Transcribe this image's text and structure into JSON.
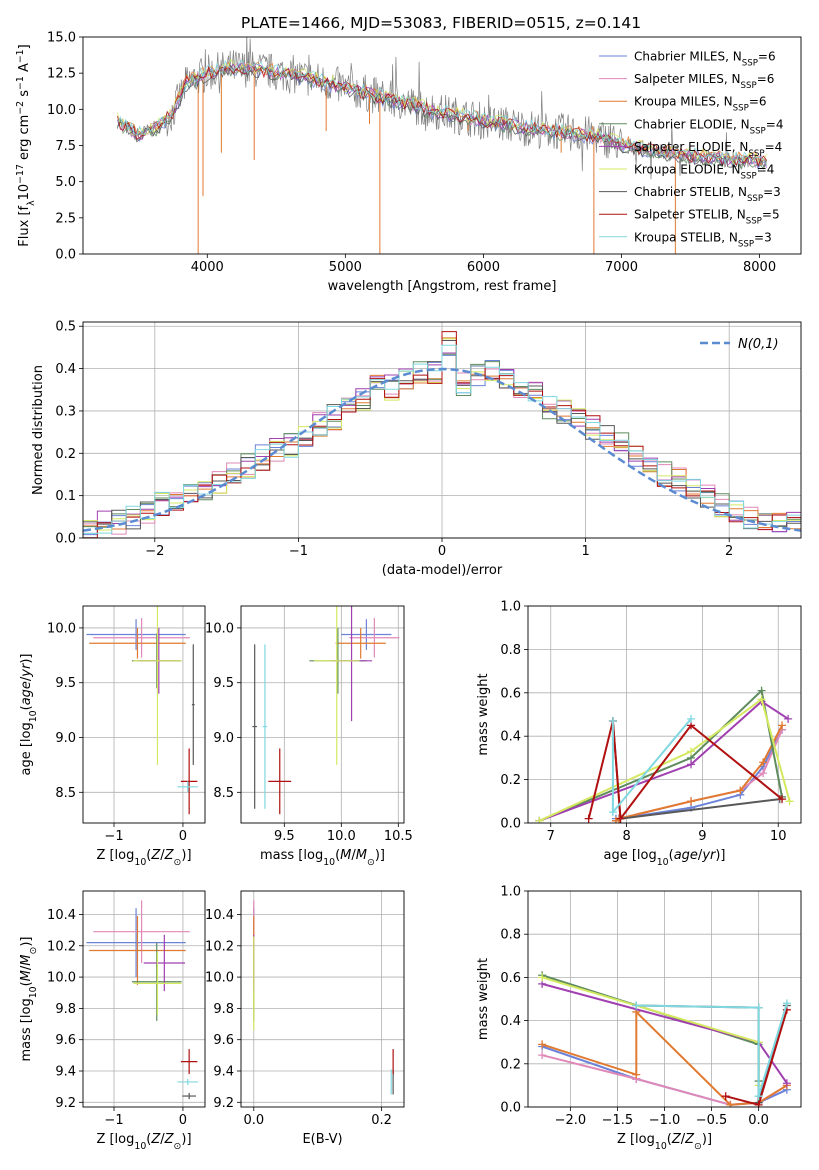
{
  "figure_title": "PLATE=1466, MJD=53083, FIBERID=0515, z=0.141",
  "colors": {
    "Chabrier MILES": "#6b82d8",
    "Salpeter MILES": "#e088b8",
    "Kroupa MILES": "#e07a30",
    "Chabrier ELODIE": "#5e8c5e",
    "Salpeter ELODIE": "#a040b0",
    "Kroupa ELODIE": "#d4e860",
    "Chabrier STELIB": "#585858",
    "Salpeter STELIB": "#b01010",
    "Kroupa STELIB": "#80d8e0",
    "data": "#808080",
    "normal": "#5b8bd0"
  },
  "chart_data": [
    {
      "id": "spectrum",
      "type": "line",
      "title": "PLATE=1466, MJD=53083, FIBERID=0515, z=0.141",
      "xlabel": "wavelength [Angstrom, rest frame]",
      "ylabel": "Flux [f_λ 10^-17 erg cm^-2 s^-1 A^-1]",
      "xlim": [
        3100,
        8300
      ],
      "ylim": [
        0,
        15
      ],
      "xticks": [
        4000,
        5000,
        6000,
        7000,
        8000
      ],
      "yticks": [
        0.0,
        2.5,
        5.0,
        7.5,
        10.0,
        12.5,
        15.0
      ],
      "legend_position": "top-right",
      "legend": [
        "Chabrier MILES, N_SSP=6",
        "Salpeter MILES, N_SSP=6",
        "Kroupa MILES, N_SSP=6",
        "Chabrier ELODIE, N_SSP=4",
        "Salpeter ELODIE, N_SSP=4",
        "Kroupa ELODIE, N_SSP=4",
        "Chabrier STELIB, N_SSP=3",
        "Salpeter STELIB, N_SSP=5",
        "Kroupa STELIB, N_SSP=3"
      ],
      "continuum": {
        "x": [
          3350,
          3500,
          3650,
          3750,
          3850,
          3950,
          4050,
          4200,
          4400,
          4600,
          4800,
          5000,
          5200,
          5400,
          5600,
          5800,
          6000,
          6200,
          6400,
          6600,
          6800,
          7000,
          7200,
          7400,
          7600,
          7800,
          8050
        ],
        "y": [
          9.2,
          8.2,
          8.8,
          9.8,
          11.8,
          12.3,
          12.6,
          12.9,
          12.7,
          12.4,
          12.0,
          11.5,
          11.0,
          10.5,
          10.0,
          9.6,
          9.2,
          8.9,
          8.6,
          8.4,
          8.2,
          7.6,
          7.2,
          6.9,
          6.7,
          6.5,
          6.4
        ]
      },
      "absorption_spikes": [
        {
          "x": 3934,
          "y": 0.0
        },
        {
          "x": 3969,
          "y": 4.0
        },
        {
          "x": 4102,
          "y": 7.0
        },
        {
          "x": 4340,
          "y": 6.5
        },
        {
          "x": 4861,
          "y": 8.5
        },
        {
          "x": 5175,
          "y": 9.0
        },
        {
          "x": 5250,
          "y": 0.0
        },
        {
          "x": 5890,
          "y": 8.5
        },
        {
          "x": 6563,
          "y": 7.0
        },
        {
          "x": 6800,
          "y": 0.0
        },
        {
          "x": 7390,
          "y": 0.0
        }
      ]
    },
    {
      "id": "residuals",
      "type": "line",
      "xlabel": "(data-model)/error",
      "ylabel": "Normed distribution",
      "xlim": [
        -2.5,
        2.5
      ],
      "ylim": [
        0,
        0.51
      ],
      "xticks": [
        -2,
        -1,
        0,
        1,
        2
      ],
      "yticks": [
        0.0,
        0.1,
        0.2,
        0.3,
        0.4,
        0.5
      ],
      "legend_position": "top-right",
      "normal_label": "N(0,1)",
      "bin_edges": [
        -2.5,
        -2.4,
        -2.3,
        -2.2,
        -2.1,
        -2.0,
        -1.9,
        -1.8,
        -1.7,
        -1.6,
        -1.5,
        -1.4,
        -1.3,
        -1.2,
        -1.1,
        -1.0,
        -0.9,
        -0.8,
        -0.7,
        -0.6,
        -0.5,
        -0.4,
        -0.3,
        -0.2,
        -0.1,
        0.0,
        0.1,
        0.2,
        0.3,
        0.4,
        0.5,
        0.6,
        0.7,
        0.8,
        0.9,
        1.0,
        1.1,
        1.2,
        1.3,
        1.4,
        1.5,
        1.6,
        1.7,
        1.8,
        1.9,
        2.0,
        2.1,
        2.2,
        2.3,
        2.4,
        2.5
      ],
      "base_hist": [
        0.03,
        0.034,
        0.038,
        0.05,
        0.055,
        0.08,
        0.09,
        0.1,
        0.12,
        0.135,
        0.15,
        0.17,
        0.19,
        0.205,
        0.22,
        0.24,
        0.27,
        0.285,
        0.31,
        0.33,
        0.36,
        0.355,
        0.375,
        0.39,
        0.39,
        0.46,
        0.36,
        0.38,
        0.39,
        0.37,
        0.35,
        0.34,
        0.31,
        0.3,
        0.28,
        0.26,
        0.24,
        0.22,
        0.195,
        0.175,
        0.15,
        0.14,
        0.12,
        0.095,
        0.08,
        0.065,
        0.05,
        0.04,
        0.03,
        0.032
      ]
    },
    {
      "id": "age-vs-Z",
      "type": "scatter",
      "xlabel": "Z [log10(Z/Z_sun)]",
      "ylabel": "age  [log10(age/yr)]",
      "xlim": [
        -1.45,
        0.32
      ],
      "ylim": [
        8.22,
        10.2
      ],
      "xticks": [
        -1,
        0
      ],
      "yticks": [
        8.5,
        9.0,
        9.5,
        10.0
      ],
      "points": [
        {
          "model": "Chabrier MILES",
          "x": -0.68,
          "y": 9.94,
          "xerr": 0.72,
          "yerr": 0.14
        },
        {
          "model": "Salpeter MILES",
          "x": -0.6,
          "y": 9.91,
          "xerr": 0.7,
          "yerr": 0.18
        },
        {
          "model": "Kroupa MILES",
          "x": -0.66,
          "y": 9.86,
          "xerr": 0.7,
          "yerr": 0.14
        },
        {
          "model": "Chabrier ELODIE",
          "x": -0.38,
          "y": 9.7,
          "xerr": 0.36,
          "yerr": 0.25
        },
        {
          "model": "Salpeter ELODIE",
          "x": -0.35,
          "y": 9.7,
          "xerr": 0.3,
          "yerr": 0.3
        },
        {
          "model": "Kroupa ELODIE",
          "x": -0.37,
          "y": 9.7,
          "xerr": 0.35,
          "yerr": 0.95
        },
        {
          "model": "Chabrier STELIB",
          "x": 0.15,
          "y": 9.3,
          "xerr": 0.02,
          "yerr": 0.55
        },
        {
          "model": "Salpeter STELIB",
          "x": 0.09,
          "y": 8.6,
          "xerr": 0.12,
          "yerr": 0.3
        },
        {
          "model": "Kroupa STELIB",
          "x": 0.07,
          "y": 8.55,
          "xerr": 0.15,
          "yerr": 0.05
        }
      ]
    },
    {
      "id": "age-vs-mass",
      "type": "scatter",
      "xlabel": "mass [log10(M/M_sun)]",
      "ylabel": "",
      "xlim": [
        9.12,
        10.55
      ],
      "ylim": [
        8.22,
        10.2
      ],
      "xticks": [
        9.5,
        10.0,
        10.5
      ],
      "yticks": [
        8.5,
        9.0,
        9.5,
        10.0
      ],
      "points": [
        {
          "model": "Chabrier MILES",
          "x": 10.22,
          "y": 9.94,
          "xerr": 0.22,
          "yerr": 0.14
        },
        {
          "model": "Salpeter MILES",
          "x": 10.29,
          "y": 9.91,
          "xerr": 0.22,
          "yerr": 0.18
        },
        {
          "model": "Kroupa MILES",
          "x": 10.17,
          "y": 9.86,
          "xerr": 0.22,
          "yerr": 0.14
        },
        {
          "model": "Chabrier ELODIE",
          "x": 9.97,
          "y": 9.7,
          "xerr": 0.25,
          "yerr": 0.3
        },
        {
          "model": "Salpeter ELODIE",
          "x": 10.09,
          "y": 9.7,
          "xerr": 0.18,
          "yerr": 0.55
        },
        {
          "model": "Kroupa ELODIE",
          "x": 9.96,
          "y": 9.7,
          "xerr": 0.2,
          "yerr": 0.95
        },
        {
          "model": "Chabrier STELIB",
          "x": 9.24,
          "y": 9.1,
          "xerr": 0.02,
          "yerr": 0.75
        },
        {
          "model": "Salpeter STELIB",
          "x": 9.46,
          "y": 8.6,
          "xerr": 0.1,
          "yerr": 0.3
        },
        {
          "model": "Kroupa STELIB",
          "x": 9.33,
          "y": 9.1,
          "xerr": 0.02,
          "yerr": 0.75
        }
      ]
    },
    {
      "id": "weight-vs-age",
      "type": "line",
      "xlabel": "age  [log10(age/yr)]",
      "ylabel": "mass weight",
      "xlim": [
        6.7,
        10.3
      ],
      "ylim": [
        0,
        1.0
      ],
      "xticks": [
        7,
        8,
        9,
        10
      ],
      "yticks": [
        0.0,
        0.2,
        0.4,
        0.6,
        0.8,
        1.0
      ],
      "series": [
        {
          "model": "Chabrier MILES",
          "x": [
            7.86,
            7.9,
            8.85,
            9.5,
            9.8,
            10.05
          ],
          "y": [
            0.02,
            0.02,
            0.07,
            0.13,
            0.26,
            0.43
          ]
        },
        {
          "model": "Salpeter MILES",
          "x": [
            7.86,
            7.9,
            8.85,
            9.5,
            9.8,
            10.05
          ],
          "y": [
            0.01,
            0.02,
            0.1,
            0.15,
            0.23,
            0.43
          ]
        },
        {
          "model": "Kroupa MILES",
          "x": [
            7.86,
            7.9,
            8.85,
            9.5,
            9.8,
            10.05
          ],
          "y": [
            0.01,
            0.02,
            0.1,
            0.15,
            0.28,
            0.45
          ]
        },
        {
          "model": "Chabrier ELODIE",
          "x": [
            6.85,
            8.85,
            9.78,
            10.05
          ],
          "y": [
            0.01,
            0.3,
            0.61,
            0.12
          ]
        },
        {
          "model": "Salpeter ELODIE",
          "x": [
            6.85,
            8.85,
            9.78,
            10.13
          ],
          "y": [
            0.01,
            0.27,
            0.56,
            0.48
          ]
        },
        {
          "model": "Kroupa ELODIE",
          "x": [
            6.85,
            8.85,
            9.78,
            10.15
          ],
          "y": [
            0.01,
            0.33,
            0.57,
            0.1
          ]
        },
        {
          "model": "Chabrier STELIB",
          "x": [
            7.82,
            7.92,
            10.02
          ],
          "y": [
            0.47,
            0.02,
            0.11
          ]
        },
        {
          "model": "Salpeter STELIB",
          "x": [
            7.5,
            7.82,
            7.92,
            8.85,
            10.05
          ],
          "y": [
            0.02,
            0.47,
            0.02,
            0.45,
            0.11
          ]
        },
        {
          "model": "Kroupa STELIB",
          "x": [
            7.82,
            7.82,
            8.85
          ],
          "y": [
            0.47,
            0.05,
            0.48
          ]
        }
      ]
    },
    {
      "id": "mass-vs-Z",
      "type": "scatter",
      "xlabel": "Z [log10(Z/Z_sun)]",
      "ylabel": "mass [log10(M/M_sun)]",
      "xlim": [
        -1.45,
        0.32
      ],
      "ylim": [
        9.17,
        10.55
      ],
      "xticks": [
        -1,
        0
      ],
      "yticks": [
        9.2,
        9.4,
        9.6,
        9.8,
        10.0,
        10.2,
        10.4
      ],
      "points": [
        {
          "model": "Chabrier MILES",
          "x": -0.68,
          "y": 10.22,
          "xerr": 0.72,
          "yerr": 0.22
        },
        {
          "model": "Salpeter MILES",
          "x": -0.6,
          "y": 10.29,
          "xerr": 0.7,
          "yerr": 0.2
        },
        {
          "model": "Kroupa MILES",
          "x": -0.66,
          "y": 10.17,
          "xerr": 0.7,
          "yerr": 0.22
        },
        {
          "model": "Chabrier ELODIE",
          "x": -0.38,
          "y": 9.97,
          "xerr": 0.36,
          "yerr": 0.25
        },
        {
          "model": "Salpeter ELODIE",
          "x": -0.27,
          "y": 10.09,
          "xerr": 0.3,
          "yerr": 0.18
        },
        {
          "model": "Kroupa ELODIE",
          "x": -0.37,
          "y": 9.96,
          "xerr": 0.35,
          "yerr": 0.2
        },
        {
          "model": "Chabrier STELIB",
          "x": 0.09,
          "y": 9.24,
          "xerr": 0.1,
          "yerr": 0.02
        },
        {
          "model": "Salpeter STELIB",
          "x": 0.09,
          "y": 9.46,
          "xerr": 0.12,
          "yerr": 0.08
        },
        {
          "model": "Kroupa STELIB",
          "x": 0.07,
          "y": 9.33,
          "xerr": 0.15,
          "yerr": 0.02
        }
      ]
    },
    {
      "id": "mass-vs-ebv",
      "type": "scatter",
      "xlabel": "E(B-V)",
      "ylabel": "",
      "xlim": [
        -0.02,
        0.235
      ],
      "ylim": [
        9.17,
        10.55
      ],
      "xticks": [
        0.0,
        0.2
      ],
      "yticks": [
        9.2,
        9.4,
        9.6,
        9.8,
        10.0,
        10.2,
        10.4
      ],
      "points": [
        {
          "model": "Chabrier MILES",
          "x": 0.0,
          "y": 10.22,
          "xerr": 0.0,
          "yerr": 0.22
        },
        {
          "model": "Salpeter MILES",
          "x": 0.0,
          "y": 10.29,
          "xerr": 0.0,
          "yerr": 0.2
        },
        {
          "model": "Kroupa MILES",
          "x": 0.0,
          "y": 10.17,
          "xerr": 0.0,
          "yerr": 0.22
        },
        {
          "model": "Chabrier ELODIE",
          "x": 0.0,
          "y": 9.97,
          "xerr": 0.0,
          "yerr": 0.25
        },
        {
          "model": "Salpeter ELODIE",
          "x": 0.0,
          "y": 10.09,
          "xerr": 0.0,
          "yerr": 0.18
        },
        {
          "model": "Kroupa ELODIE",
          "x": 0.0,
          "y": 9.96,
          "xerr": 0.0,
          "yerr": 0.3
        },
        {
          "model": "Chabrier STELIB",
          "x": 0.218,
          "y": 9.33,
          "xerr": 0.0,
          "yerr": 0.08
        },
        {
          "model": "Salpeter STELIB",
          "x": 0.218,
          "y": 9.46,
          "xerr": 0.0,
          "yerr": 0.08
        },
        {
          "model": "Kroupa STELIB",
          "x": 0.215,
          "y": 9.33,
          "xerr": 0.0,
          "yerr": 0.08
        }
      ]
    },
    {
      "id": "weight-vs-Z",
      "type": "line",
      "xlabel": "Z [log10(Z/Z_sun)]",
      "ylabel": "mass weight",
      "xlim": [
        -2.45,
        0.45
      ],
      "ylim": [
        0,
        1.0
      ],
      "xticks": [
        -2.0,
        -1.5,
        -1.0,
        -0.5,
        0.0
      ],
      "yticks": [
        0.0,
        0.2,
        0.4,
        0.6,
        0.8,
        1.0
      ],
      "series": [
        {
          "model": "Chabrier MILES",
          "x": [
            -2.3,
            -1.3,
            -1.3,
            -0.3,
            0.0,
            0.3
          ],
          "y": [
            0.28,
            0.13,
            0.13,
            0.01,
            0.02,
            0.08
          ]
        },
        {
          "model": "Salpeter MILES",
          "x": [
            -2.3,
            -1.3,
            -1.3,
            -0.3,
            0.0,
            0.3
          ],
          "y": [
            0.24,
            0.13,
            0.13,
            0.01,
            0.02,
            0.1
          ]
        },
        {
          "model": "Kroupa MILES",
          "x": [
            -2.3,
            -1.3,
            -1.3,
            -0.3,
            0.0,
            0.3
          ],
          "y": [
            0.29,
            0.15,
            0.44,
            0.01,
            0.02,
            0.1
          ]
        },
        {
          "model": "Chabrier ELODIE",
          "x": [
            -2.3,
            0.0,
            0.0
          ],
          "y": [
            0.61,
            0.29,
            0.12
          ]
        },
        {
          "model": "Salpeter ELODIE",
          "x": [
            -2.3,
            0.0,
            0.3
          ],
          "y": [
            0.57,
            0.3,
            0.11
          ]
        },
        {
          "model": "Kroupa ELODIE",
          "x": [
            -2.3,
            0.0,
            0.0
          ],
          "y": [
            0.6,
            0.3,
            0.1
          ]
        },
        {
          "model": "Chabrier STELIB",
          "x": [
            -1.3,
            0.0,
            0.0,
            0.3
          ],
          "y": [
            0.47,
            0.46,
            0.02,
            0.47
          ]
        },
        {
          "model": "Salpeter STELIB",
          "x": [
            -0.35,
            0.0,
            0.3
          ],
          "y": [
            0.05,
            0.01,
            0.45
          ]
        },
        {
          "model": "Kroupa STELIB",
          "x": [
            -1.3,
            0.0,
            0.0,
            0.3
          ],
          "y": [
            0.47,
            0.46,
            0.05,
            0.48
          ]
        }
      ]
    }
  ]
}
